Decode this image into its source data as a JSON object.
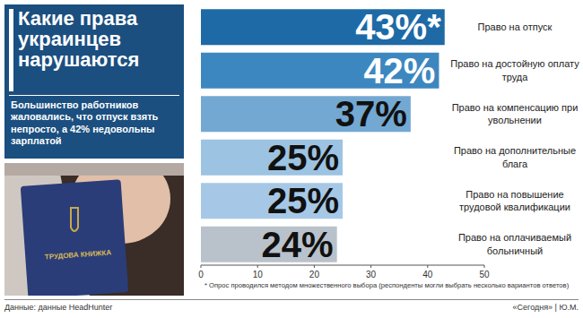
{
  "chart_data": {
    "type": "bar",
    "orientation": "horizontal",
    "title": "Какие права украинцев нарушаются",
    "subtitle": "Большинство работников жаловались, что отпуск взять непросто, а 42% недовольны зарплатой",
    "categories": [
      "Право на отпуск",
      "Право на достойную оплату труда",
      "Право на компенсацию при увольнении",
      "Право на дополнительные блага",
      "Право на повышение трудовой квалификации",
      "Право на оплачиваемый больничный"
    ],
    "values": [
      43,
      42,
      37,
      25,
      25,
      24
    ],
    "value_labels": [
      "43%*",
      "42%",
      "37%",
      "25%",
      "25%",
      "24%"
    ],
    "colors": [
      "#1e6aa6",
      "#3d87c0",
      "#73a8d2",
      "#9cc3e2",
      "#a6c8e6",
      "#b9c2ca"
    ],
    "xlim": [
      0,
      50
    ],
    "xticks": [
      0,
      10,
      20,
      30,
      40,
      50
    ],
    "grid": false,
    "data_labels": true,
    "note": "* Опрос проводился методом множественного выбора (респонденты могли выбрать несколько вариантов ответов)",
    "source": "Данные: данные HeadHunter",
    "credit": "«Сегодня» | Ю.М.",
    "annotations": [
      "ТРУДОВА КНИЖКА"
    ]
  }
}
